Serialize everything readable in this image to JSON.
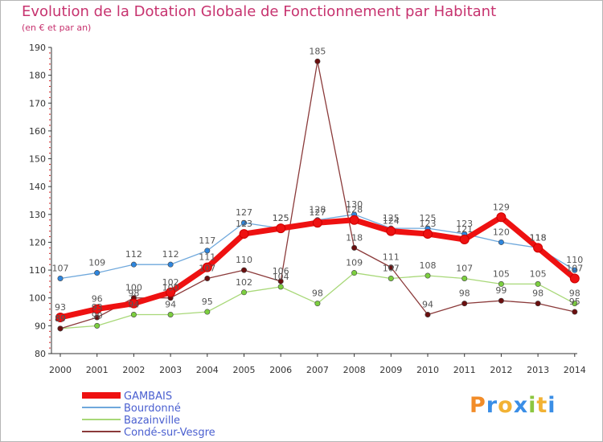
{
  "title": "Evolution de la Dotation Globale de Fonctionnement par Habitant",
  "subtitle": "(en € et par an)",
  "logo": {
    "letters": [
      "P",
      "r",
      "o",
      "x",
      "i",
      "t",
      "i"
    ]
  },
  "chart_data": {
    "type": "line",
    "x": [
      "2000",
      "2001",
      "2002",
      "2003",
      "2004",
      "2005",
      "2006",
      "2007",
      "2008",
      "2009",
      "2010",
      "2011",
      "2012",
      "2013",
      "2014"
    ],
    "ylim": [
      80,
      190
    ],
    "yticks": [
      80,
      90,
      100,
      110,
      120,
      130,
      140,
      150,
      160,
      170,
      180,
      190
    ],
    "grid": false,
    "legend_position": "bottom-left",
    "series": [
      {
        "name": "Bourdonné",
        "color": "#6fa8dc",
        "marker": "#2e86de",
        "width": 1.3,
        "values": [
          107,
          109,
          112,
          112,
          117,
          127,
          125,
          128,
          130,
          125,
          125,
          123,
          120,
          118,
          110
        ]
      },
      {
        "name": "Bazainville",
        "color": "#a8d878",
        "marker": "#7ccf3f",
        "width": 1.3,
        "values": [
          89,
          90,
          94,
          94,
          95,
          102,
          104,
          98,
          109,
          107,
          108,
          107,
          105,
          105,
          98
        ]
      },
      {
        "name": "Condé-sur-Vesgre",
        "color": "#8b3a3a",
        "marker": "#6b0f0f",
        "width": 1.3,
        "values": [
          89,
          93,
          100,
          100,
          107,
          110,
          106,
          185,
          118,
          111,
          94,
          98,
          99,
          98,
          95
        ]
      },
      {
        "name": "GAMBAIS",
        "color": "#ee1111",
        "marker": "#ee1111",
        "width": 7,
        "values": [
          93,
          96,
          98,
          102,
          111,
          123,
          125,
          127,
          128,
          124,
          123,
          121,
          129,
          118,
          107
        ]
      }
    ],
    "legend_order": [
      "GAMBAIS",
      "Bourdonné",
      "Bazainville",
      "Condé-sur-Vesgre"
    ]
  }
}
